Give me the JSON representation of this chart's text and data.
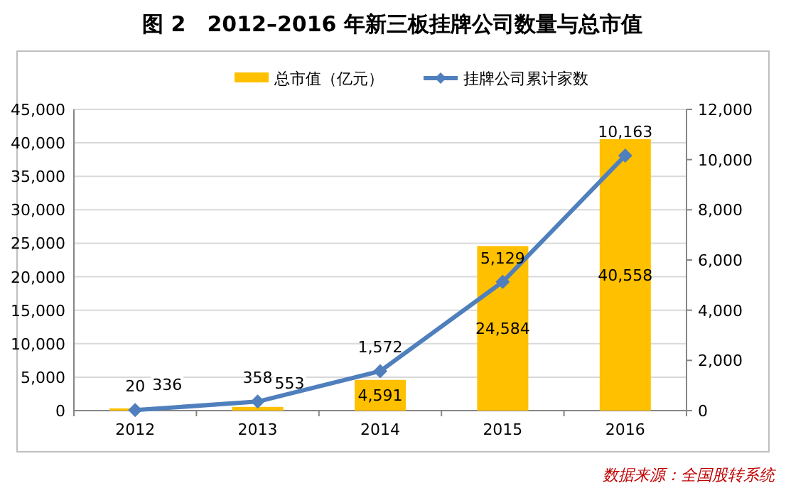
{
  "chart_data": {
    "type": "bar",
    "title": "图 2　2012–2016 年新三板挂牌公司数量与总市值",
    "categories": [
      "2012",
      "2013",
      "2014",
      "2015",
      "2016"
    ],
    "series": [
      {
        "name": "总市值（亿元）",
        "color": "#ffc000",
        "values": [
          336,
          553,
          4591,
          24584,
          40558
        ],
        "value_labels": [
          "336",
          "553",
          "4,591",
          "24,584",
          "40,558"
        ]
      },
      {
        "name": "挂牌公司累计家数",
        "type": "line",
        "axis": "y2",
        "color": "#4f7fbc",
        "marker": "diamond",
        "values": [
          20,
          358,
          1572,
          5129,
          10163
        ],
        "value_labels": [
          "20",
          "358",
          "1,572",
          "5,129",
          "10,163"
        ]
      }
    ],
    "ylim": [
      0,
      45000
    ],
    "yticks": [
      {
        "value": 0,
        "label": "0"
      },
      {
        "value": 5000,
        "label": "5,000"
      },
      {
        "value": 10000,
        "label": "10,000"
      },
      {
        "value": 15000,
        "label": "15,000"
      },
      {
        "value": 20000,
        "label": "20,000"
      },
      {
        "value": 25000,
        "label": "25,000"
      },
      {
        "value": 30000,
        "label": "30,000"
      },
      {
        "value": 35000,
        "label": "35,000"
      },
      {
        "value": 40000,
        "label": "40,000"
      },
      {
        "value": 45000,
        "label": "45,000"
      }
    ],
    "y2lim": [
      0,
      12000
    ],
    "y2ticks": [
      {
        "value": 0,
        "label": "0"
      },
      {
        "value": 2000,
        "label": "2,000"
      },
      {
        "value": 4000,
        "label": "4,000"
      },
      {
        "value": 6000,
        "label": "6,000"
      },
      {
        "value": 8000,
        "label": "8,000"
      },
      {
        "value": 10000,
        "label": "10,000"
      },
      {
        "value": 12000,
        "label": "12,000"
      }
    ],
    "grid": "y",
    "legend": "top",
    "annotations": [
      "数据来源：全国股转系统"
    ]
  }
}
